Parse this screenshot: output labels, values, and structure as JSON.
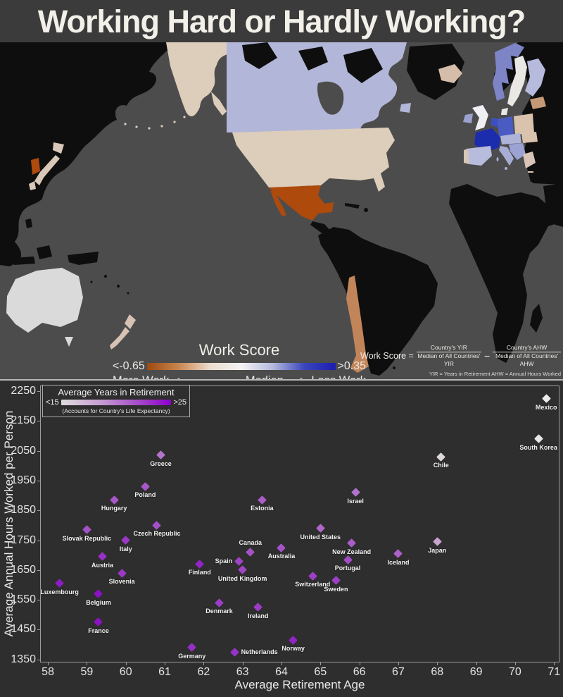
{
  "title": "Working Hard or Hardly Working?",
  "map": {
    "legend": {
      "title": "Work Score",
      "min_label": "<-0.65",
      "max_label": ">0.35",
      "more_label": "More Work",
      "median_label": "Median",
      "less_label": "Less Work",
      "gradient": [
        "#9c4a10",
        "#c8854f",
        "#ecdccd",
        "#f4f2f4",
        "#b4badc",
        "#3a46bc",
        "#1d1db2"
      ]
    },
    "formula": {
      "lhs": "Work Score =",
      "num1": "Country's YIR",
      "den1": "Median of All Countries' YIR",
      "operator": "−",
      "num2": "Country's AHW",
      "den2": "Median of All Countries' AHW",
      "footnote": "YIR = Years in Retirement    AHW = Annual Hours Worked"
    },
    "region_colors": {
      "ocean": "#4c4c4c",
      "nodata": "#0e0e0e",
      "alaska_usa": "#ddcdbb",
      "usa": "#ddcdbb",
      "canada": "#b2b6d8",
      "mexico": "#ae4a0c",
      "chile": "#c2855a",
      "south_korea": "#ae4a0c",
      "japan": "#d9c8b8",
      "australia": "#dadada",
      "new_zealand": "#d7c2b4",
      "iceland": "#d5bda9",
      "norway": "#7d85c6",
      "sweden": "#eae8e4",
      "finland": "#b6badd",
      "estonia_baltics": "#c49a76",
      "denmark": "#eae8e4",
      "united_kingdom": "#eef0f4",
      "ireland": "#9aa2d0",
      "benelux": "#3d50c0",
      "germany": "#4a5cc4",
      "poland": "#d9c3ac",
      "france": "#1b2cad",
      "central_europe": "#aeb3d8",
      "romania": "#d9c3ac",
      "spain": "#b7bcdc",
      "portugal": "#d8c6b6",
      "italy": "#a7aed6",
      "balkans": "#9ba3d2",
      "greece": "#d9c4b8"
    }
  },
  "chart_data": {
    "type": "scatter",
    "xlabel": "Average Retirement Age",
    "ylabel": "Average Annual Hours Worked per Person",
    "xlim": [
      57.8,
      71.14
    ],
    "ylim": [
      1340,
      2269
    ],
    "xticks": [
      58,
      59,
      60,
      61,
      62,
      63,
      64,
      65,
      66,
      67,
      68,
      69,
      70,
      71
    ],
    "yticks": [
      1350,
      1450,
      1550,
      1650,
      1750,
      1850,
      1950,
      2050,
      2150,
      2250
    ],
    "grid": false,
    "legend": {
      "title": "Average Years in Retirement",
      "min_label": "<15",
      "max_label": ">25",
      "subtitle": "(Accounts for Country's Life Expectancy)",
      "position": "upper left",
      "gradient": [
        "#dedade",
        "#c9a3d2",
        "#a854c8",
        "#8d00cc"
      ]
    },
    "points": [
      {
        "country": "Mexico",
        "retirement_age": 70.8,
        "annual_hours": 2225,
        "marker_color": "#ebebeb",
        "label_pos": "below"
      },
      {
        "country": "South Korea",
        "retirement_age": 70.6,
        "annual_hours": 2090,
        "marker_color": "#e9e7e9",
        "label_pos": "below"
      },
      {
        "country": "Chile",
        "retirement_age": 68.1,
        "annual_hours": 2030,
        "marker_color": "#ded8de",
        "label_pos": "below"
      },
      {
        "country": "Greece",
        "retirement_age": 60.9,
        "annual_hours": 2035,
        "marker_color": "#b273cb",
        "label_pos": "below"
      },
      {
        "country": "Poland",
        "retirement_age": 60.5,
        "annual_hours": 1930,
        "marker_color": "#a757c7",
        "label_pos": "below"
      },
      {
        "country": "Hungary",
        "retirement_age": 59.7,
        "annual_hours": 1885,
        "marker_color": "#a757c7",
        "label_pos": "below"
      },
      {
        "country": "Estonia",
        "retirement_age": 63.5,
        "annual_hours": 1885,
        "marker_color": "#aa5cc8",
        "label_pos": "below"
      },
      {
        "country": "Israel",
        "retirement_age": 65.9,
        "annual_hours": 1910,
        "marker_color": "#b273cb",
        "label_pos": "below"
      },
      {
        "country": "Slovak Republic",
        "retirement_age": 59.0,
        "annual_hours": 1785,
        "marker_color": "#a452c6",
        "label_pos": "below"
      },
      {
        "country": "Czech Republic",
        "retirement_age": 60.8,
        "annual_hours": 1800,
        "marker_color": "#a44fc8",
        "label_pos": "below"
      },
      {
        "country": "Italy",
        "retirement_age": 60.0,
        "annual_hours": 1750,
        "marker_color": "#9c38c8",
        "label_pos": "below"
      },
      {
        "country": "United States",
        "retirement_age": 65.0,
        "annual_hours": 1790,
        "marker_color": "#af66c9",
        "label_pos": "below"
      },
      {
        "country": "Japan",
        "retirement_age": 68.0,
        "annual_hours": 1745,
        "marker_color": "#c9a2cf",
        "label_pos": "below"
      },
      {
        "country": "Canada",
        "retirement_age": 63.2,
        "annual_hours": 1710,
        "marker_color": "#a452c6",
        "label_pos": "above"
      },
      {
        "country": "Australia",
        "retirement_age": 64.0,
        "annual_hours": 1725,
        "marker_color": "#a552c7",
        "label_pos": "below"
      },
      {
        "country": "New Zealand",
        "retirement_age": 65.8,
        "annual_hours": 1740,
        "marker_color": "#ab5ec8",
        "label_pos": "below"
      },
      {
        "country": "Spain",
        "retirement_age": 62.9,
        "annual_hours": 1680,
        "marker_color": "#9e43c5",
        "label_pos": "left"
      },
      {
        "country": "Iceland",
        "retirement_age": 67.0,
        "annual_hours": 1705,
        "marker_color": "#ad60c8",
        "label_pos": "below"
      },
      {
        "country": "Austria",
        "retirement_age": 59.4,
        "annual_hours": 1695,
        "marker_color": "#9730c7",
        "label_pos": "below"
      },
      {
        "country": "Portugal",
        "retirement_age": 65.7,
        "annual_hours": 1685,
        "marker_color": "#a24cc6",
        "label_pos": "below"
      },
      {
        "country": "Finland",
        "retirement_age": 61.9,
        "annual_hours": 1670,
        "marker_color": "#9224c6",
        "label_pos": "below"
      },
      {
        "country": "United Kingdom",
        "retirement_age": 63.0,
        "annual_hours": 1650,
        "marker_color": "#9f46c5",
        "label_pos": "below"
      },
      {
        "country": "Slovenia",
        "retirement_age": 59.9,
        "annual_hours": 1640,
        "marker_color": "#9b38c7",
        "label_pos": "below"
      },
      {
        "country": "Switzerland",
        "retirement_age": 64.8,
        "annual_hours": 1630,
        "marker_color": "#9d40c5",
        "label_pos": "below"
      },
      {
        "country": "Sweden",
        "retirement_age": 65.4,
        "annual_hours": 1615,
        "marker_color": "#9d40c5",
        "label_pos": "below"
      },
      {
        "country": "Luxembourg",
        "retirement_age": 58.3,
        "annual_hours": 1605,
        "marker_color": "#8e1bc4",
        "label_pos": "below"
      },
      {
        "country": "Belgium",
        "retirement_age": 59.3,
        "annual_hours": 1570,
        "marker_color": "#8b12c3",
        "label_pos": "below"
      },
      {
        "country": "Denmark",
        "retirement_age": 62.4,
        "annual_hours": 1540,
        "marker_color": "#9c3cc6",
        "label_pos": "below"
      },
      {
        "country": "Ireland",
        "retirement_age": 63.4,
        "annual_hours": 1525,
        "marker_color": "#9c3cc6",
        "label_pos": "below"
      },
      {
        "country": "France",
        "retirement_age": 59.3,
        "annual_hours": 1475,
        "marker_color": "#8b12c3",
        "label_pos": "below"
      },
      {
        "country": "Norway",
        "retirement_age": 64.3,
        "annual_hours": 1415,
        "marker_color": "#9224c6",
        "label_pos": "below"
      },
      {
        "country": "Germany",
        "retirement_age": 61.7,
        "annual_hours": 1390,
        "marker_color": "#9530c7",
        "label_pos": "below"
      },
      {
        "country": "Netherlands",
        "retirement_age": 62.8,
        "annual_hours": 1375,
        "marker_color": "#9733c7",
        "label_pos": "right"
      }
    ]
  }
}
